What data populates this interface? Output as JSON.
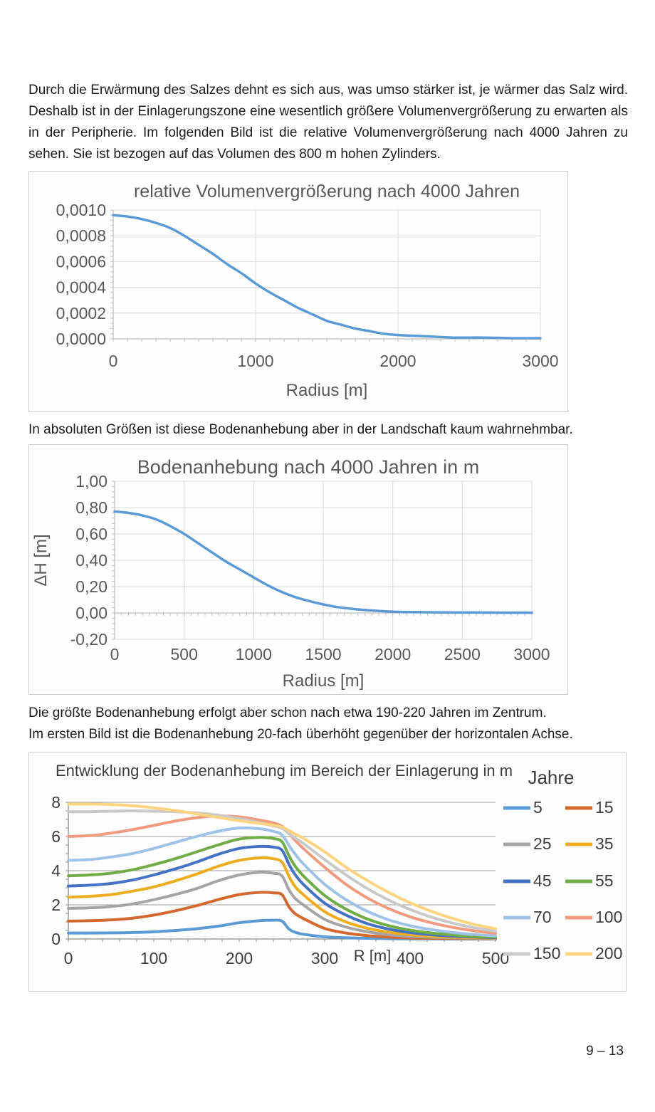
{
  "document": {
    "paragraph1": "Durch die Erwärmung des Salzes dehnt es sich aus, was umso stärker ist, je wärmer das Salz wird. Deshalb ist in der Einlagerungszone eine wesentlich größere Volumenvergrößerung zu erwarten als in der Peripherie. Im folgenden Bild ist die relative Volumenvergrößerung nach 4000 Jahren zu sehen. Sie ist bezogen auf das Volumen des 800 m hohen Zylinders.",
    "paragraph2": "In absoluten Größen ist diese Bodenanhebung aber in der Landschaft kaum wahrnehmbar.",
    "paragraph3_line1": "Die größte Bodenanhebung erfolgt aber schon nach etwa 190-220 Jahren im Zentrum.",
    "paragraph3_line2": "Im ersten Bild ist die Bodenanhebung 20-fach überhöht gegenüber der horizontalen Achse.",
    "page_number": "9 – 13"
  },
  "chart_data": [
    {
      "id": "relative-volumenvergroesserung",
      "type": "line",
      "title": "relative Volumenvergrößerung  nach 4000 Jahren",
      "xlabel": "Radius [m]",
      "ylabel": "",
      "xlim": [
        0,
        3000
      ],
      "ylim": [
        0,
        0.001
      ],
      "grid": true,
      "legend_position": "none",
      "xticks": [
        0,
        1000,
        2000,
        3000
      ],
      "xtick_labels": [
        "0",
        "1000",
        "2000",
        "3000"
      ],
      "yticks": [
        0.001,
        0.0008,
        0.0006,
        0.0004,
        0.0002,
        0
      ],
      "ytick_labels": [
        "0,0010",
        "0,0008",
        "0,0006",
        "0,0004",
        "0,0002",
        "0,0000"
      ],
      "x": [
        0,
        100,
        200,
        300,
        400,
        500,
        600,
        700,
        800,
        900,
        1000,
        1100,
        1200,
        1300,
        1400,
        1500,
        1600,
        1700,
        1800,
        1900,
        2000,
        2200,
        2400,
        2600,
        2800,
        3000
      ],
      "series": [
        {
          "name": "relative Volumenvergrößerung",
          "color": "#5B9BD5",
          "values": [
            0.00096,
            0.00095,
            0.00093,
            0.0009,
            0.00086,
            0.0008,
            0.00073,
            0.00066,
            0.00058,
            0.00051,
            0.00043,
            0.00036,
            0.0003,
            0.00024,
            0.00019,
            0.00014,
            0.00011,
            8e-05,
            6e-05,
            4e-05,
            3e-05,
            2e-05,
            1e-05,
            1e-05,
            5e-06,
            5e-06
          ]
        }
      ]
    },
    {
      "id": "bodenanhebung-4000",
      "type": "line",
      "title": "Bodenanhebung  nach 4000 Jahren in m",
      "xlabel": "Radius [m]",
      "ylabel": "ΔH [m]",
      "xlim": [
        0,
        3000
      ],
      "ylim": [
        -0.2,
        1.0
      ],
      "xaxis_at": 0,
      "grid": true,
      "legend_position": "none",
      "xticks": [
        0,
        500,
        1000,
        1500,
        2000,
        2500,
        3000
      ],
      "xtick_labels": [
        "0",
        "500",
        "1000",
        "1500",
        "2000",
        "2500",
        "3000"
      ],
      "yticks": [
        1.0,
        0.8,
        0.6,
        0.4,
        0.2,
        0,
        -0.2
      ],
      "ytick_labels": [
        "1,00",
        "0,80",
        "0,60",
        "0,40",
        "0,20",
        "0,00",
        "-0,20"
      ],
      "x": [
        0,
        100,
        200,
        300,
        400,
        500,
        600,
        700,
        800,
        900,
        1000,
        1100,
        1200,
        1300,
        1400,
        1500,
        1600,
        1700,
        1800,
        1900,
        2000,
        2200,
        2400,
        2600,
        2800,
        3000
      ],
      "series": [
        {
          "name": "Bodenanhebung",
          "color": "#5B9BD5",
          "values": [
            0.77,
            0.76,
            0.74,
            0.71,
            0.66,
            0.6,
            0.53,
            0.46,
            0.39,
            0.33,
            0.27,
            0.21,
            0.16,
            0.12,
            0.09,
            0.065,
            0.045,
            0.032,
            0.022,
            0.015,
            0.01,
            0.006,
            0.004,
            0.003,
            0.002,
            0.002
          ]
        }
      ]
    },
    {
      "id": "entwicklung-bodenanhebung",
      "type": "line",
      "title": "Entwicklung der Bodenanhebung  im Bereich der Einlagerung in m",
      "xlabel": "R [m]",
      "ylabel": "",
      "xlim": [
        0,
        500
      ],
      "ylim": [
        0,
        8
      ],
      "grid": true,
      "legend_title": "Jahre",
      "legend_position": "right",
      "xticks": [
        0,
        100,
        200,
        300,
        400,
        500
      ],
      "xtick_labels": [
        "0",
        "100",
        "200",
        "300",
        "400",
        "500"
      ],
      "yticks": [
        0,
        2,
        4,
        6,
        8
      ],
      "ytick_labels": [
        "0",
        "2",
        "4",
        "6",
        "8"
      ],
      "x": [
        0,
        25,
        50,
        75,
        100,
        125,
        150,
        175,
        200,
        225,
        240,
        250,
        258,
        265,
        275,
        300,
        325,
        350,
        375,
        400,
        425,
        450,
        475,
        500
      ],
      "series": [
        {
          "name": "5",
          "color": "#5B9BD5",
          "values": [
            0.35,
            0.35,
            0.36,
            0.38,
            0.42,
            0.5,
            0.6,
            0.75,
            0.95,
            1.08,
            1.1,
            1.05,
            0.6,
            0.4,
            0.28,
            0.13,
            0.07,
            0.04,
            0.02,
            0.01,
            0.01,
            0,
            0,
            0
          ]
        },
        {
          "name": "15",
          "color": "#D2692E",
          "values": [
            1.05,
            1.07,
            1.12,
            1.22,
            1.4,
            1.65,
            1.95,
            2.3,
            2.6,
            2.73,
            2.7,
            2.6,
            1.9,
            1.5,
            1.2,
            0.62,
            0.35,
            0.2,
            0.11,
            0.06,
            0.04,
            0.03,
            0.02,
            0.02
          ]
        },
        {
          "name": "25",
          "color": "#A5A5A5",
          "values": [
            1.8,
            1.82,
            1.9,
            2.05,
            2.3,
            2.6,
            2.95,
            3.4,
            3.75,
            3.9,
            3.85,
            3.7,
            2.9,
            2.4,
            2.0,
            1.15,
            0.7,
            0.42,
            0.25,
            0.15,
            0.1,
            0.07,
            0.05,
            0.04
          ]
        },
        {
          "name": "35",
          "color": "#EDAD21",
          "values": [
            2.45,
            2.5,
            2.6,
            2.8,
            3.05,
            3.4,
            3.8,
            4.25,
            4.6,
            4.75,
            4.7,
            4.5,
            3.7,
            3.1,
            2.6,
            1.6,
            1.0,
            0.63,
            0.4,
            0.25,
            0.16,
            0.11,
            0.08,
            0.06
          ]
        },
        {
          "name": "45",
          "color": "#4472C4",
          "values": [
            3.1,
            3.15,
            3.25,
            3.45,
            3.75,
            4.1,
            4.5,
            4.95,
            5.3,
            5.42,
            5.38,
            5.2,
            4.4,
            3.8,
            3.2,
            2.1,
            1.4,
            0.9,
            0.58,
            0.38,
            0.25,
            0.17,
            0.12,
            0.08
          ]
        },
        {
          "name": "55",
          "color": "#70AD47",
          "values": [
            3.7,
            3.75,
            3.85,
            4.05,
            4.35,
            4.7,
            5.1,
            5.5,
            5.85,
            5.95,
            5.88,
            5.7,
            4.9,
            4.3,
            3.7,
            2.55,
            1.75,
            1.17,
            0.78,
            0.52,
            0.35,
            0.24,
            0.16,
            0.11
          ]
        },
        {
          "name": "70",
          "color": "#9DC3E6",
          "values": [
            4.6,
            4.65,
            4.8,
            5.0,
            5.3,
            5.65,
            6.0,
            6.3,
            6.5,
            6.45,
            6.3,
            6.1,
            5.5,
            5.0,
            4.4,
            3.2,
            2.3,
            1.62,
            1.12,
            0.78,
            0.55,
            0.38,
            0.26,
            0.18
          ]
        },
        {
          "name": "100",
          "color": "#F09B7E",
          "values": [
            6.0,
            6.05,
            6.2,
            6.4,
            6.65,
            6.9,
            7.1,
            7.2,
            7.15,
            6.95,
            6.8,
            6.6,
            6.2,
            5.8,
            5.3,
            4.2,
            3.2,
            2.4,
            1.78,
            1.3,
            0.95,
            0.68,
            0.48,
            0.33
          ]
        },
        {
          "name": "150",
          "color": "#C9C9C9",
          "values": [
            7.45,
            7.45,
            7.48,
            7.5,
            7.48,
            7.45,
            7.38,
            7.25,
            7.05,
            6.8,
            6.62,
            6.48,
            6.18,
            5.92,
            5.6,
            4.65,
            3.75,
            2.95,
            2.28,
            1.73,
            1.28,
            0.93,
            0.66,
            0.46
          ]
        },
        {
          "name": "200",
          "color": "#FFD480",
          "values": [
            7.9,
            7.9,
            7.87,
            7.8,
            7.68,
            7.52,
            7.32,
            7.12,
            6.92,
            6.76,
            6.66,
            6.56,
            6.36,
            6.15,
            5.9,
            5.1,
            4.2,
            3.42,
            2.72,
            2.12,
            1.62,
            1.2,
            0.86,
            0.6
          ]
        }
      ]
    }
  ]
}
